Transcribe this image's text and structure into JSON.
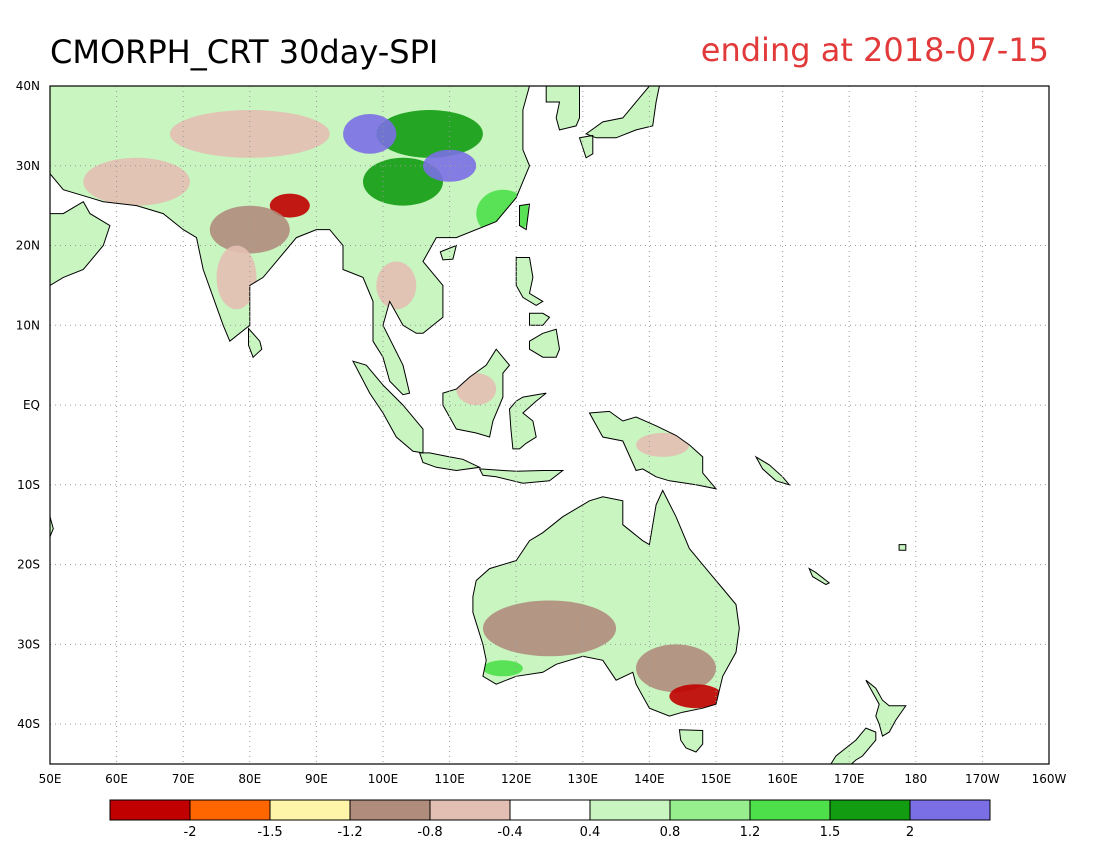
{
  "title": "CMORPH_CRT 30day-SPI",
  "subtitle": "ending at 2018-07-15",
  "colors": {
    "title": "#000000",
    "subtitle": "#e23a3a",
    "coast": "#000000",
    "grid": "#9a9a9a"
  },
  "map": {
    "lon_range": [
      50,
      200
    ],
    "lat_range": [
      -45,
      40
    ],
    "lon_ticks": [
      {
        "value": 50,
        "label": "50E"
      },
      {
        "value": 60,
        "label": "60E"
      },
      {
        "value": 70,
        "label": "70E"
      },
      {
        "value": 80,
        "label": "80E"
      },
      {
        "value": 90,
        "label": "90E"
      },
      {
        "value": 100,
        "label": "100E"
      },
      {
        "value": 110,
        "label": "110E"
      },
      {
        "value": 120,
        "label": "120E"
      },
      {
        "value": 130,
        "label": "130E"
      },
      {
        "value": 140,
        "label": "140E"
      },
      {
        "value": 150,
        "label": "150E"
      },
      {
        "value": 160,
        "label": "160E"
      },
      {
        "value": 170,
        "label": "170E"
      },
      {
        "value": 180,
        "label": "180"
      },
      {
        "value": 190,
        "label": "170W"
      },
      {
        "value": 200,
        "label": "160W"
      }
    ],
    "lat_ticks": [
      {
        "value": 40,
        "label": "40N"
      },
      {
        "value": 30,
        "label": "30N"
      },
      {
        "value": 20,
        "label": "20N"
      },
      {
        "value": 10,
        "label": "10N"
      },
      {
        "value": 0,
        "label": "EQ"
      },
      {
        "value": -10,
        "label": "10S"
      },
      {
        "value": -20,
        "label": "20S"
      },
      {
        "value": -30,
        "label": "30S"
      },
      {
        "value": -40,
        "label": "40S"
      }
    ],
    "grid": "dotted"
  },
  "colorbar": {
    "colors": [
      "#c00000",
      "#ff6600",
      "#fff5a8",
      "#b08c7c",
      "#e3bfb3",
      "#ffffff",
      "#c8f5c0",
      "#96ee8c",
      "#4ee04a",
      "#129c12",
      "#7b6fe6"
    ],
    "labels": [
      "-2",
      "-1.5",
      "-1.2",
      "-0.8",
      "-0.4",
      "0.4",
      "0.8",
      "1.2",
      "1.5",
      "2"
    ]
  },
  "land": [
    {
      "name": "asia",
      "points": [
        [
          50,
          40
        ],
        [
          122,
          40
        ],
        [
          121,
          37
        ],
        [
          121,
          32
        ],
        [
          122,
          30
        ],
        [
          120,
          26
        ],
        [
          117,
          23
        ],
        [
          111,
          21
        ],
        [
          108,
          21
        ],
        [
          106,
          18
        ],
        [
          109,
          15
        ],
        [
          109,
          11
        ],
        [
          106,
          9
        ],
        [
          105,
          9
        ],
        [
          103,
          10
        ],
        [
          101,
          13
        ],
        [
          100,
          10
        ],
        [
          103,
          5
        ],
        [
          104,
          1.5
        ],
        [
          103,
          1.3
        ],
        [
          101,
          3
        ],
        [
          100,
          6
        ],
        [
          98.5,
          8
        ],
        [
          98.5,
          13
        ],
        [
          97,
          16
        ],
        [
          94,
          17
        ],
        [
          94,
          20
        ],
        [
          92,
          22
        ],
        [
          90,
          22
        ],
        [
          87,
          21
        ],
        [
          86,
          20
        ],
        [
          82,
          16
        ],
        [
          80,
          15
        ],
        [
          80,
          10
        ],
        [
          77,
          8
        ],
        [
          76,
          10
        ],
        [
          73,
          17
        ],
        [
          72,
          21
        ],
        [
          70,
          22
        ],
        [
          67,
          24
        ],
        [
          63,
          25
        ],
        [
          58,
          25.5
        ],
        [
          56,
          26
        ],
        [
          52,
          27
        ],
        [
          50,
          29
        ]
      ]
    },
    {
      "name": "arabia",
      "points": [
        [
          50,
          29
        ],
        [
          50,
          24
        ],
        [
          52,
          24
        ],
        [
          55,
          25.5
        ],
        [
          56,
          24
        ],
        [
          59,
          22.5
        ],
        [
          58,
          20
        ],
        [
          55,
          17
        ],
        [
          52,
          16
        ],
        [
          50,
          15
        ]
      ]
    },
    {
      "name": "australia",
      "points": [
        [
          114,
          -22
        ],
        [
          116,
          -20.5
        ],
        [
          120,
          -19.5
        ],
        [
          122,
          -17
        ],
        [
          124,
          -16
        ],
        [
          127,
          -14
        ],
        [
          130,
          -12.5
        ],
        [
          131,
          -12
        ],
        [
          133,
          -11.5
        ],
        [
          136,
          -12
        ],
        [
          136,
          -15
        ],
        [
          139,
          -17
        ],
        [
          140,
          -17.5
        ],
        [
          141,
          -12.5
        ],
        [
          142,
          -10.7
        ],
        [
          144,
          -14
        ],
        [
          146,
          -18
        ],
        [
          149,
          -21
        ],
        [
          151,
          -23
        ],
        [
          153,
          -25
        ],
        [
          153.5,
          -28
        ],
        [
          153,
          -31
        ],
        [
          151,
          -34
        ],
        [
          150,
          -37.5
        ],
        [
          148,
          -38
        ],
        [
          145,
          -38.5
        ],
        [
          143,
          -39
        ],
        [
          140,
          -38
        ],
        [
          138,
          -35
        ],
        [
          137.5,
          -33.5
        ],
        [
          135,
          -34.5
        ],
        [
          133,
          -32
        ],
        [
          130,
          -31.5
        ],
        [
          126,
          -32.5
        ],
        [
          124,
          -33.5
        ],
        [
          120,
          -34
        ],
        [
          117,
          -35
        ],
        [
          115,
          -34
        ],
        [
          115.5,
          -32
        ],
        [
          115,
          -30
        ],
        [
          113.5,
          -26
        ],
        [
          113.5,
          -24
        ]
      ]
    },
    {
      "name": "tasmania",
      "points": [
        [
          144.5,
          -40.7
        ],
        [
          148,
          -40.8
        ],
        [
          148,
          -42.5
        ],
        [
          147,
          -43.5
        ],
        [
          145.5,
          -43
        ],
        [
          144.7,
          -42
        ]
      ]
    },
    {
      "name": "sumatra",
      "points": [
        [
          95.5,
          5.5
        ],
        [
          97.5,
          5
        ],
        [
          100,
          2.5
        ],
        [
          103,
          0
        ],
        [
          106,
          -3
        ],
        [
          106,
          -6
        ],
        [
          104.5,
          -5.8
        ],
        [
          102,
          -4
        ],
        [
          100,
          -1
        ],
        [
          98,
          1.5
        ]
      ]
    },
    {
      "name": "java",
      "points": [
        [
          105.5,
          -6
        ],
        [
          107,
          -6
        ],
        [
          110,
          -6.5
        ],
        [
          112,
          -6.8
        ],
        [
          114.5,
          -7.8
        ],
        [
          111,
          -8.2
        ],
        [
          108,
          -7.8
        ],
        [
          106,
          -7.2
        ]
      ]
    },
    {
      "name": "lesser-sunda",
      "points": [
        [
          114.5,
          -8
        ],
        [
          120,
          -8.3
        ],
        [
          124,
          -8.2
        ],
        [
          127,
          -8.2
        ],
        [
          125,
          -9.5
        ],
        [
          121,
          -9.8
        ],
        [
          117,
          -9
        ],
        [
          115,
          -8.8
        ]
      ]
    },
    {
      "name": "borneo",
      "points": [
        [
          109,
          1.5
        ],
        [
          111,
          2
        ],
        [
          113,
          3.5
        ],
        [
          115.5,
          5
        ],
        [
          117,
          7
        ],
        [
          119,
          5
        ],
        [
          118,
          4
        ],
        [
          118,
          1
        ],
        [
          117.5,
          0
        ],
        [
          116.5,
          -2
        ],
        [
          116,
          -4
        ],
        [
          114,
          -3.5
        ],
        [
          111,
          -3
        ],
        [
          110,
          -1.5
        ],
        [
          109,
          0
        ]
      ]
    },
    {
      "name": "sulawesi",
      "points": [
        [
          119,
          -0.5
        ],
        [
          120,
          0.5
        ],
        [
          121,
          1
        ],
        [
          124.5,
          1.5
        ],
        [
          123,
          0.5
        ],
        [
          121,
          -1
        ],
        [
          122.5,
          -2
        ],
        [
          123,
          -4
        ],
        [
          121.5,
          -4.8
        ],
        [
          120.5,
          -5.5
        ],
        [
          119.5,
          -5.5
        ],
        [
          119.2,
          -3
        ]
      ]
    },
    {
      "name": "new-guinea",
      "points": [
        [
          131,
          -1
        ],
        [
          134,
          -0.8
        ],
        [
          136,
          -2
        ],
        [
          138,
          -1.5
        ],
        [
          141,
          -2.6
        ],
        [
          144,
          -3.8
        ],
        [
          146,
          -5
        ],
        [
          148,
          -6.5
        ],
        [
          148,
          -8.5
        ],
        [
          150,
          -10.5
        ],
        [
          147,
          -10
        ],
        [
          143,
          -9.5
        ],
        [
          141,
          -9
        ],
        [
          139,
          -8
        ],
        [
          138,
          -8.2
        ],
        [
          136,
          -4.5
        ],
        [
          133,
          -4
        ],
        [
          132,
          -2.5
        ]
      ]
    },
    {
      "name": "luzon",
      "points": [
        [
          120,
          18.5
        ],
        [
          122,
          18.5
        ],
        [
          122.5,
          16
        ],
        [
          122,
          14
        ],
        [
          124,
          13
        ],
        [
          123,
          12.5
        ],
        [
          121,
          13.5
        ],
        [
          120,
          15
        ]
      ]
    },
    {
      "name": "mindanao",
      "points": [
        [
          122,
          8
        ],
        [
          124,
          9
        ],
        [
          126,
          9.5
        ],
        [
          126.5,
          7
        ],
        [
          126,
          6
        ],
        [
          124,
          6
        ],
        [
          122,
          7
        ]
      ]
    },
    {
      "name": "visayas",
      "points": [
        [
          122,
          11.5
        ],
        [
          124,
          11.5
        ],
        [
          125,
          11
        ],
        [
          124,
          10
        ],
        [
          122,
          10
        ]
      ]
    },
    {
      "name": "taiwan",
      "points": [
        [
          120.5,
          25
        ],
        [
          122,
          25.2
        ],
        [
          121.5,
          22
        ],
        [
          120.5,
          22.5
        ]
      ]
    },
    {
      "name": "hainan",
      "points": [
        [
          108.6,
          19.2
        ],
        [
          111,
          20
        ],
        [
          110.5,
          18.3
        ],
        [
          109,
          18.2
        ]
      ]
    },
    {
      "name": "sri-lanka",
      "points": [
        [
          79.8,
          9.6
        ],
        [
          81.5,
          8
        ],
        [
          81.8,
          7
        ],
        [
          80.5,
          6
        ],
        [
          79.8,
          7.5
        ]
      ]
    },
    {
      "name": "honshu",
      "points": [
        [
          130.5,
          34
        ],
        [
          133,
          35.5
        ],
        [
          136,
          36
        ],
        [
          137.5,
          37.5
        ],
        [
          140,
          40
        ],
        [
          141.5,
          40
        ],
        [
          141,
          38
        ],
        [
          140.5,
          35
        ],
        [
          138,
          34.5
        ],
        [
          135,
          33.5
        ],
        [
          132,
          33.5
        ]
      ]
    },
    {
      "name": "kyushu",
      "points": [
        [
          129.5,
          33.5
        ],
        [
          131.5,
          33.8
        ],
        [
          131.5,
          31.5
        ],
        [
          130.5,
          31
        ]
      ]
    },
    {
      "name": "korea",
      "points": [
        [
          124.5,
          40
        ],
        [
          129.5,
          40
        ],
        [
          129.5,
          36
        ],
        [
          129,
          35
        ],
        [
          126.5,
          34.5
        ],
        [
          126,
          36
        ],
        [
          126.5,
          38
        ],
        [
          124.5,
          38
        ]
      ]
    },
    {
      "name": "nz-north",
      "points": [
        [
          172.5,
          -34.5
        ],
        [
          174,
          -35.5
        ],
        [
          175,
          -37
        ],
        [
          176,
          -37.7
        ],
        [
          178.5,
          -37.7
        ],
        [
          177,
          -39.5
        ],
        [
          176,
          -41
        ],
        [
          175,
          -41.5
        ],
        [
          174.5,
          -40
        ],
        [
          174,
          -39
        ],
        [
          174.5,
          -37.5
        ]
      ]
    },
    {
      "name": "nz-south",
      "points": [
        [
          172.5,
          -40.5
        ],
        [
          174,
          -41
        ],
        [
          174,
          -42
        ],
        [
          172,
          -44
        ],
        [
          171,
          -44.5
        ],
        [
          169,
          -46
        ],
        [
          166.5,
          -46
        ],
        [
          168,
          -44
        ],
        [
          171,
          -42
        ]
      ]
    },
    {
      "name": "fiji",
      "points": [
        [
          177.5,
          -17.5
        ],
        [
          178.5,
          -17.5
        ],
        [
          178.5,
          -18.2
        ],
        [
          177.5,
          -18.2
        ]
      ]
    },
    {
      "name": "new-caledonia",
      "points": [
        [
          164,
          -20.5
        ],
        [
          165,
          -21
        ],
        [
          167,
          -22.3
        ],
        [
          166.5,
          -22.5
        ],
        [
          164.5,
          -21.5
        ]
      ]
    },
    {
      "name": "solomons",
      "points": [
        [
          156,
          -6.5
        ],
        [
          158,
          -7.5
        ],
        [
          160,
          -9
        ],
        [
          161,
          -10
        ],
        [
          159,
          -9.5
        ],
        [
          157,
          -8
        ]
      ]
    },
    {
      "name": "madagascar-tip",
      "points": [
        [
          50,
          -14
        ],
        [
          50.5,
          -15.5
        ],
        [
          50,
          -16.5
        ]
      ]
    }
  ],
  "spi_patches": [
    {
      "lon": 80,
      "lat": 34,
      "rx": 12,
      "ry": 3,
      "value": -0.6
    },
    {
      "lon": 107,
      "lat": 34,
      "rx": 8,
      "ry": 3,
      "value": 1.8
    },
    {
      "lon": 103,
      "lat": 28,
      "rx": 6,
      "ry": 3,
      "value": 1.6
    },
    {
      "lon": 98,
      "lat": 34,
      "rx": 4,
      "ry": 2.5,
      "value": 2.2
    },
    {
      "lon": 110,
      "lat": 30,
      "rx": 4,
      "ry": 2,
      "value": 2.2
    },
    {
      "lon": 86,
      "lat": 25,
      "rx": 3,
      "ry": 1.5,
      "value": -2.2
    },
    {
      "lon": 80,
      "lat": 22,
      "rx": 6,
      "ry": 3,
      "value": -1.0
    },
    {
      "lon": 78,
      "lat": 16,
      "rx": 3,
      "ry": 4,
      "value": -0.6
    },
    {
      "lon": 102,
      "lat": 15,
      "rx": 3,
      "ry": 3,
      "value": -0.7
    },
    {
      "lon": 63,
      "lat": 28,
      "rx": 8,
      "ry": 3,
      "value": -0.6
    },
    {
      "lon": 118,
      "lat": 24,
      "rx": 4,
      "ry": 3,
      "value": 1.4
    },
    {
      "lon": 114,
      "lat": 2,
      "rx": 3,
      "ry": 2,
      "value": -0.8
    },
    {
      "lon": 142,
      "lat": -5,
      "rx": 4,
      "ry": 1.5,
      "value": -0.6
    },
    {
      "lon": 125,
      "lat": -28,
      "rx": 10,
      "ry": 3.5,
      "value": -0.9
    },
    {
      "lon": 144,
      "lat": -33,
      "rx": 6,
      "ry": 3,
      "value": -0.9
    },
    {
      "lon": 147,
      "lat": -36.5,
      "rx": 4,
      "ry": 1.5,
      "value": -2.3
    },
    {
      "lon": 135,
      "lat": -15.5,
      "rx": 5,
      "ry": 2,
      "value": 0.6
    },
    {
      "lon": 118,
      "lat": -33,
      "rx": 3,
      "ry": 1,
      "value": 1.3
    }
  ]
}
